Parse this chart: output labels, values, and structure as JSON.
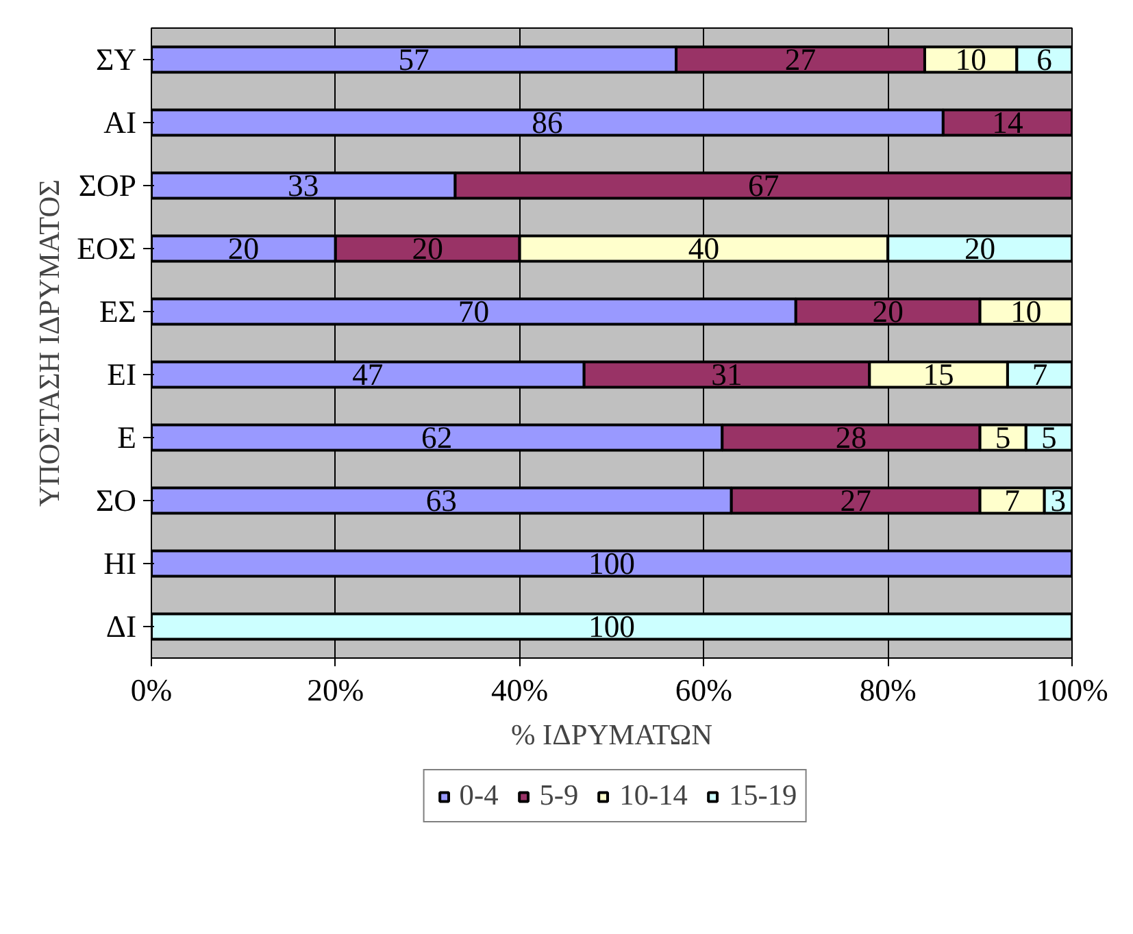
{
  "chart_data": {
    "type": "bar",
    "orientation": "horizontal",
    "stacked": true,
    "xlabel": "% ΙΔΡΥΜΑΤΩΝ",
    "ylabel": "ΥΠΟΣΤΑΣΗ ΙΔΡΥΜΑΤΟΣ",
    "categories": [
      "ΣΥ",
      "ΑΙ",
      "ΣΟΡ",
      "ΕΟΣ",
      "ΕΣ",
      "ΕΙ",
      "Ε",
      "ΣΟ",
      "ΗΙ",
      "ΔΙ"
    ],
    "series": [
      {
        "name": "0-4",
        "color": "#9999ff",
        "values": [
          57,
          86,
          33,
          20,
          70,
          47,
          62,
          63,
          100,
          null
        ]
      },
      {
        "name": "5-9",
        "color": "#993366",
        "values": [
          27,
          14,
          67,
          20,
          20,
          31,
          28,
          27,
          null,
          null
        ]
      },
      {
        "name": "10-14",
        "color": "#ffffcc",
        "values": [
          10,
          null,
          null,
          40,
          10,
          15,
          5,
          7,
          null,
          null
        ]
      },
      {
        "name": "15-19",
        "color": "#ccffff",
        "values": [
          6,
          null,
          null,
          20,
          null,
          7,
          5,
          3,
          null,
          100
        ]
      }
    ],
    "xlim": [
      0,
      100
    ],
    "xticks": [
      {
        "value": 0,
        "label": "0%"
      },
      {
        "value": 20,
        "label": "20%"
      },
      {
        "value": 40,
        "label": "40%"
      },
      {
        "value": 60,
        "label": "60%"
      },
      {
        "value": 80,
        "label": "80%"
      },
      {
        "value": 100,
        "label": "100%"
      }
    ],
    "grid": "x",
    "legend": "bottom",
    "data_labels": true
  }
}
